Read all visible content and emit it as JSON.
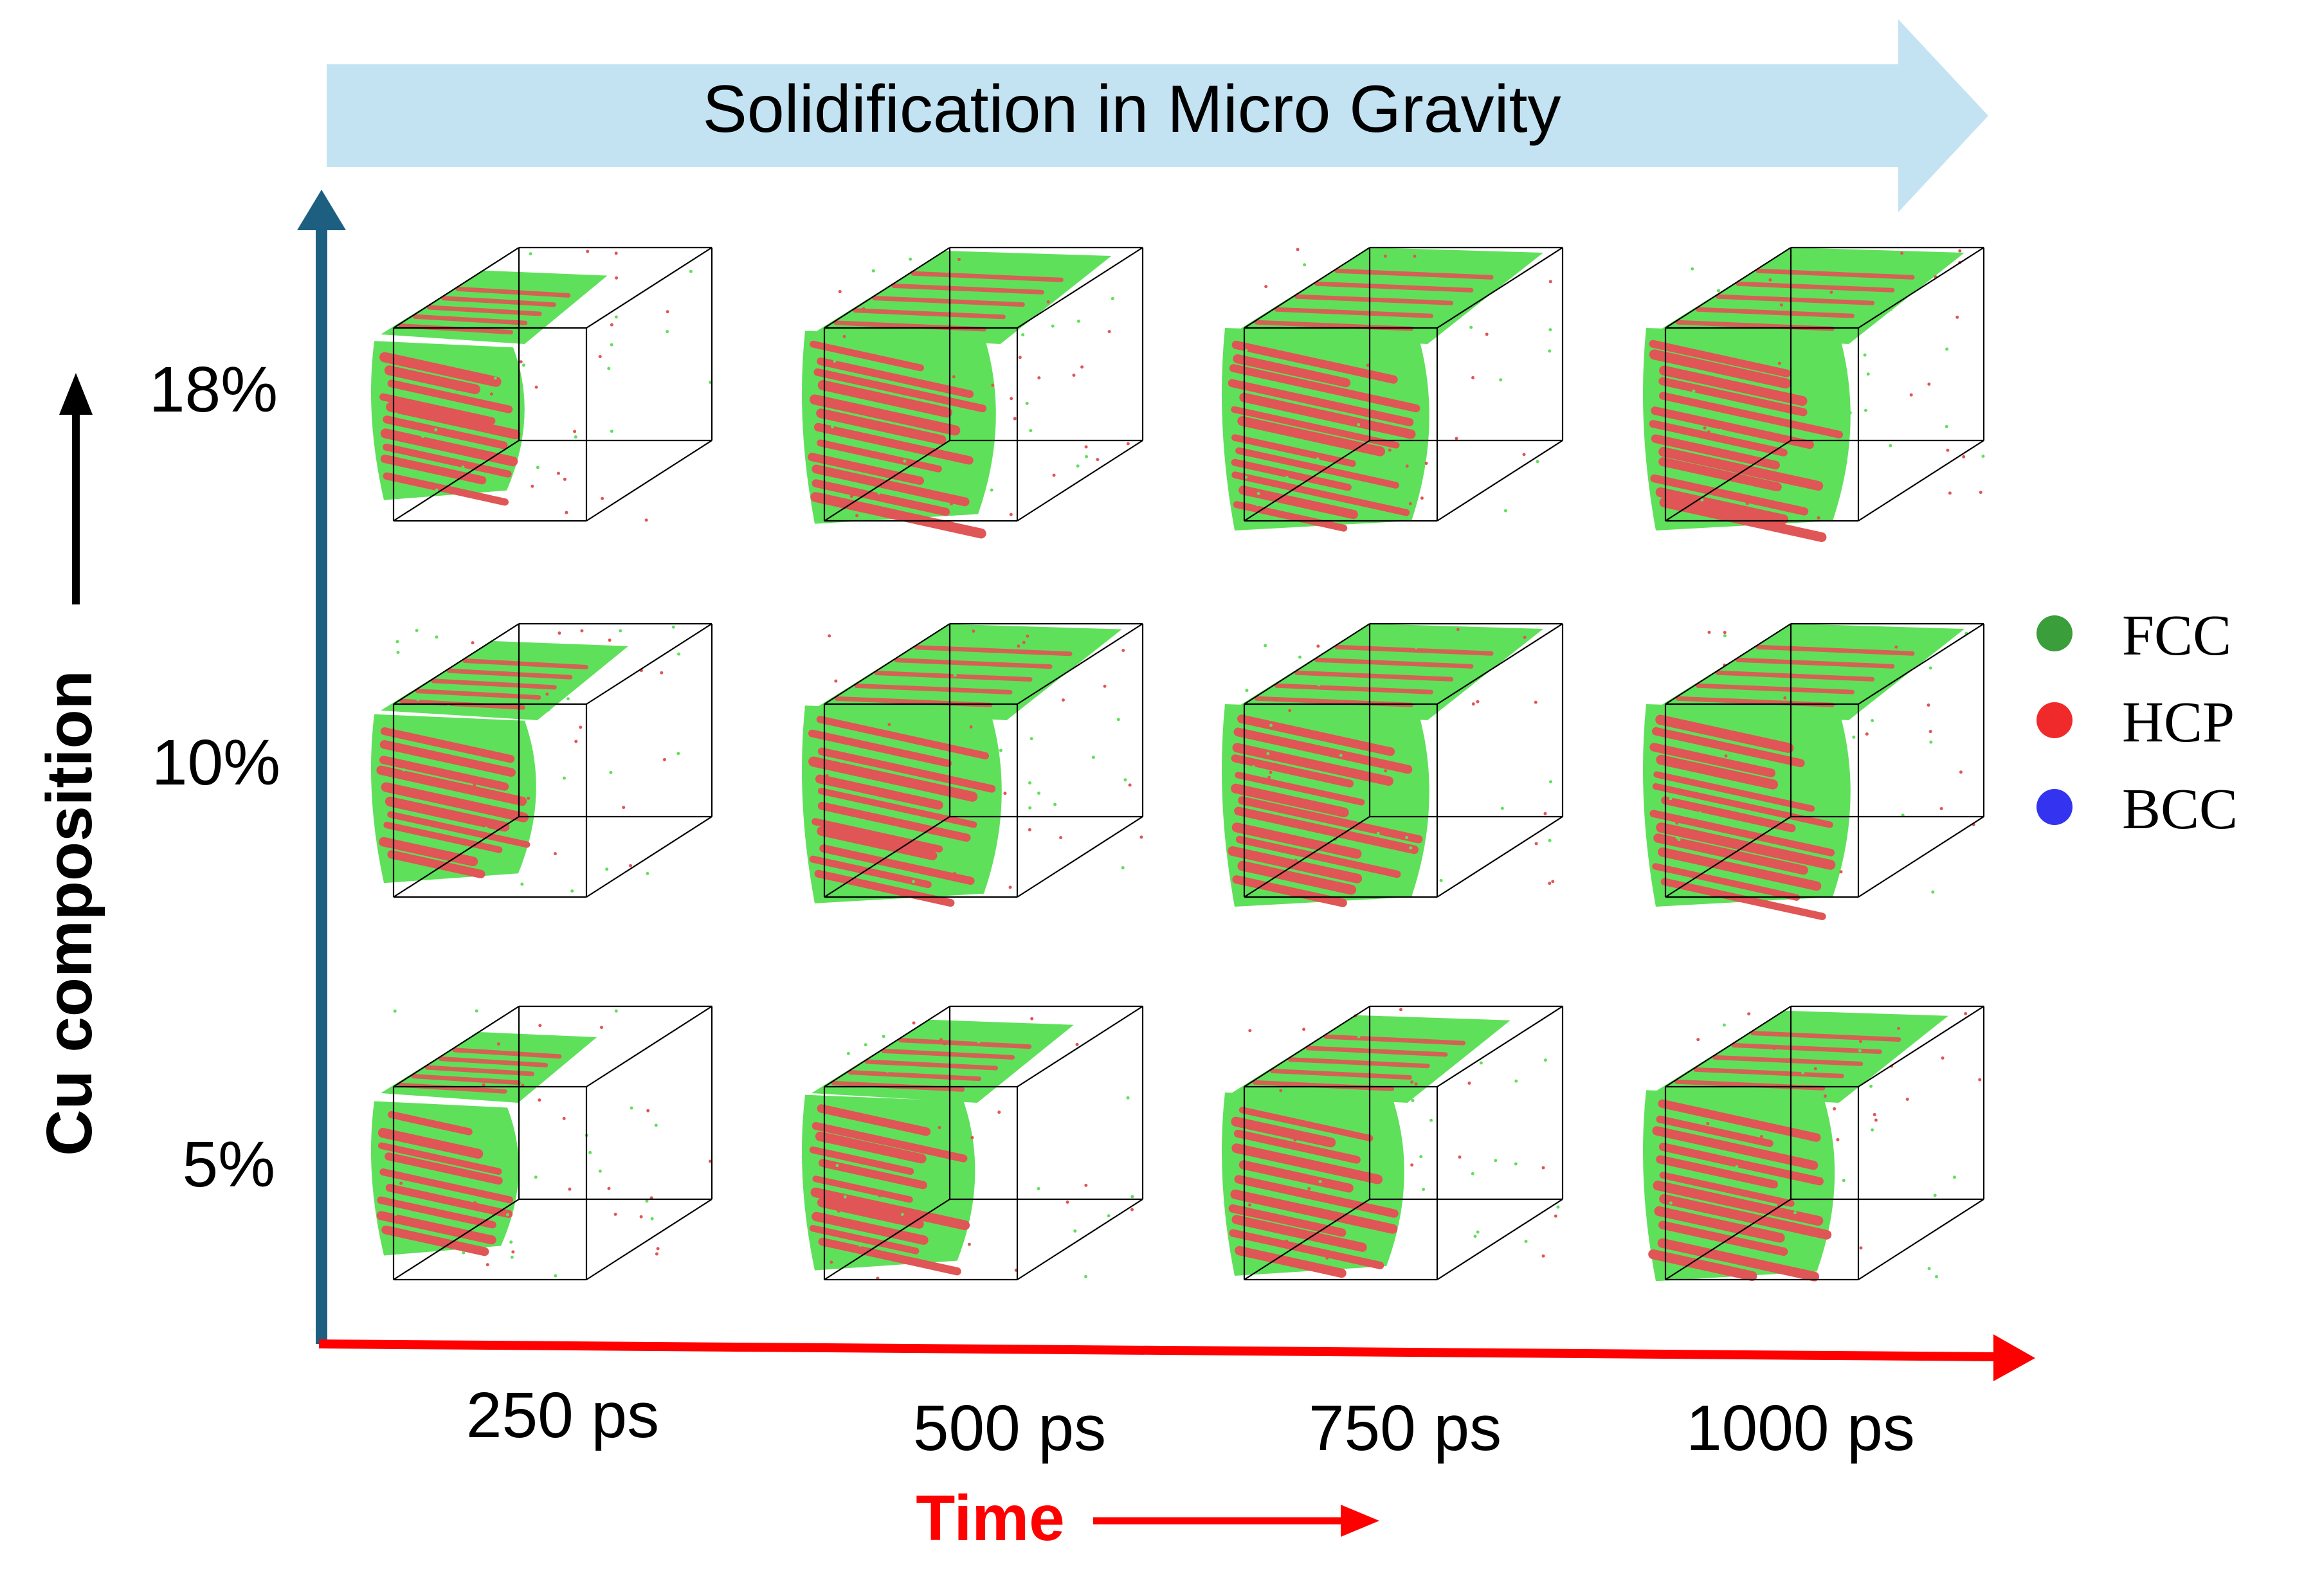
{
  "banner": {
    "text": "Solidification in Micro Gravity",
    "fill_color": "#c3e3f3"
  },
  "y_axis": {
    "title": "Cu composition",
    "color": "#1d5f80",
    "rows": [
      "18%",
      "10%",
      "5%"
    ]
  },
  "x_axis": {
    "title": "Time",
    "color": "#ff0000",
    "columns": [
      "250 ps",
      "500 ps",
      "750 ps",
      "1000 ps"
    ]
  },
  "legend": {
    "items": [
      {
        "label": "FCC",
        "color": "#3a9e3a"
      },
      {
        "label": "HCP",
        "color": "#f02a2a"
      },
      {
        "label": "BCC",
        "color": "#3333f0"
      }
    ]
  },
  "simulation_grid": {
    "phase_colors": {
      "fcc": "#5fe05a",
      "hcp": "#e05555"
    },
    "description_note": null
  }
}
